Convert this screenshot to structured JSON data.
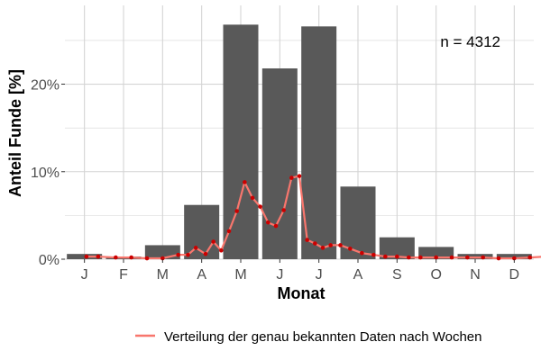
{
  "chart_data": {
    "type": "bar",
    "annotation": "n = 4312",
    "xlabel": "Monat",
    "ylabel": "Anteil Funde [%]",
    "categories": [
      "J",
      "F",
      "M",
      "A",
      "M",
      "J",
      "J",
      "A",
      "S",
      "O",
      "N",
      "D"
    ],
    "values": [
      0.6,
      0.3,
      1.6,
      6.2,
      26.8,
      21.8,
      26.6,
      8.3,
      2.5,
      1.4,
      0.6,
      0.6
    ],
    "ylim": [
      0,
      29
    ],
    "yticks": [
      0,
      10,
      20
    ],
    "ytick_labels": [
      "0%",
      "10%",
      "20%"
    ],
    "grid": true,
    "legend_position": "bottom",
    "series": [
      {
        "name": "Verteilung der genau bekannten Daten nach Wochen",
        "type": "line",
        "x": [
          0.55,
          0.85,
          1.3,
          1.7,
          2.1,
          2.5,
          2.9,
          3.15,
          3.35,
          3.6,
          3.8,
          4.0,
          4.2,
          4.4,
          4.6,
          4.8,
          5.0,
          5.2,
          5.4,
          5.6,
          5.8,
          6.0,
          6.2,
          6.4,
          6.6,
          6.8,
          7.05,
          7.3,
          7.6,
          7.9,
          8.2,
          8.5,
          8.8,
          9.1,
          9.5,
          9.9,
          10.3,
          10.7,
          11.1,
          11.5,
          11.9,
          12.3
        ],
        "values": [
          0.3,
          0.3,
          0.2,
          0.2,
          0.1,
          0.1,
          0.5,
          0.5,
          1.3,
          0.6,
          2.0,
          1.0,
          3.2,
          5.5,
          8.8,
          7.0,
          6.0,
          4.2,
          3.8,
          5.6,
          9.3,
          9.5,
          2.2,
          1.8,
          1.3,
          1.6,
          1.6,
          1.2,
          0.7,
          0.5,
          0.3,
          0.3,
          0.2,
          0.2,
          0.2,
          0.2,
          0.2,
          0.2,
          0.1,
          0.1,
          0.2,
          0.3
        ]
      }
    ]
  },
  "colors": {
    "bar": "#595959",
    "line": "#f8766d",
    "point": "#cc0000",
    "grid": "#d4d4d4",
    "text": "#4d4d4d",
    "title_text": "#000000"
  }
}
